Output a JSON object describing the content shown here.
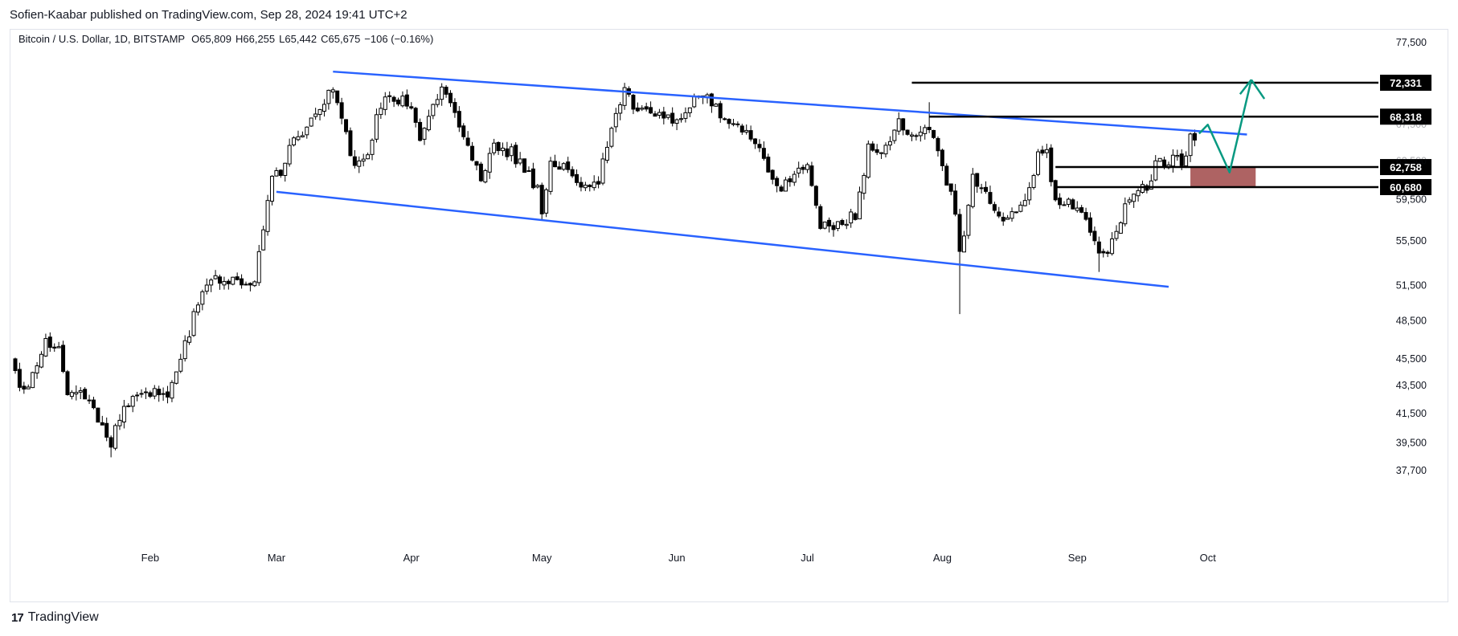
{
  "header": {
    "published": "Sofien-Kaabar published on TradingView.com, Sep 28, 2024 19:41 UTC+2"
  },
  "footer": {
    "brand": "TradingView",
    "brand_mark": "17"
  },
  "colors": {
    "up": "#ffffff",
    "down": "#000000",
    "wick": "#000000",
    "channel": "#2962ff",
    "level": "#000000",
    "arrow": "#089981",
    "zone": "#a04848",
    "grid": "#ffffff",
    "axis_text": "#131722"
  },
  "chart_data": {
    "type": "candlestick",
    "title": "Bitcoin / U.S. Dollar, 1D, BITSTAMP",
    "ohlc_readout": {
      "open_label": "O",
      "open": "65,809",
      "high_label": "H",
      "high": "66,255",
      "low_label": "L",
      "low": "65,442",
      "close_label": "C",
      "close": "65,675",
      "change": "−106 (−0.16%)"
    },
    "x_range": [
      "2024-01-01",
      "2024-10-19"
    ],
    "y_ticks": [
      {
        "label": "77,500",
        "value": 77500
      },
      {
        "label": "67,500",
        "value": 67500
      },
      {
        "label": "63,500",
        "value": 63500
      },
      {
        "label": "59,500",
        "value": 59500
      },
      {
        "label": "55,500",
        "value": 55500
      },
      {
        "label": "51,500",
        "value": 51500
      },
      {
        "label": "48,500",
        "value": 48500
      },
      {
        "label": "45,500",
        "value": 45500
      },
      {
        "label": "43,500",
        "value": 43500
      },
      {
        "label": "41,500",
        "value": 41500
      },
      {
        "label": "39,500",
        "value": 39500
      },
      {
        "label": "37,700",
        "value": 37700
      }
    ],
    "x_ticks": [
      {
        "label": "Feb",
        "date": "2024-02-01"
      },
      {
        "label": "Mar",
        "date": "2024-03-01"
      },
      {
        "label": "Apr",
        "date": "2024-04-01"
      },
      {
        "label": "May",
        "date": "2024-05-01"
      },
      {
        "label": "Jun",
        "date": "2024-06-01"
      },
      {
        "label": "Jul",
        "date": "2024-07-01"
      },
      {
        "label": "Aug",
        "date": "2024-08-01"
      },
      {
        "label": "Sep",
        "date": "2024-09-01"
      },
      {
        "label": "Oct",
        "date": "2024-10-01"
      }
    ],
    "price_anchors": [
      [
        "2024-01-01",
        44200
      ],
      [
        "2024-01-03",
        42800
      ],
      [
        "2024-01-08",
        46800
      ],
      [
        "2024-01-11",
        46300
      ],
      [
        "2024-01-13",
        42800
      ],
      [
        "2024-01-16",
        43100
      ],
      [
        "2024-01-19",
        41600
      ],
      [
        "2024-01-23",
        39500
      ],
      [
        "2024-01-26",
        41800
      ],
      [
        "2024-01-30",
        43300
      ],
      [
        "2024-02-05",
        42600
      ],
      [
        "2024-02-08",
        45300
      ],
      [
        "2024-02-12",
        49900
      ],
      [
        "2024-02-15",
        52000
      ],
      [
        "2024-02-20",
        51800
      ],
      [
        "2024-02-25",
        51700
      ],
      [
        "2024-02-27",
        57000
      ],
      [
        "2024-02-29",
        61200
      ],
      [
        "2024-03-03",
        63100
      ],
      [
        "2024-03-05",
        66500
      ],
      [
        "2024-03-06",
        66000
      ],
      [
        "2024-03-10",
        69000
      ],
      [
        "2024-03-14",
        71500
      ],
      [
        "2024-03-16",
        68500
      ],
      [
        "2024-03-19",
        62500
      ],
      [
        "2024-03-22",
        64000
      ],
      [
        "2024-03-25",
        69900
      ],
      [
        "2024-03-28",
        70800
      ],
      [
        "2024-04-01",
        69500
      ],
      [
        "2024-04-03",
        66000
      ],
      [
        "2024-04-08",
        71700
      ],
      [
        "2024-04-12",
        67200
      ],
      [
        "2024-04-14",
        64800
      ],
      [
        "2024-04-17",
        61500
      ],
      [
        "2024-04-20",
        64900
      ],
      [
        "2024-04-24",
        64300
      ],
      [
        "2024-04-30",
        60600
      ],
      [
        "2024-05-01",
        58300
      ],
      [
        "2024-05-03",
        62900
      ],
      [
        "2024-05-07",
        62700
      ],
      [
        "2024-05-10",
        60800
      ],
      [
        "2024-05-14",
        61500
      ],
      [
        "2024-05-16",
        65200
      ],
      [
        "2024-05-20",
        71400
      ],
      [
        "2024-05-22",
        69500
      ],
      [
        "2024-05-26",
        69300
      ],
      [
        "2024-05-31",
        67500
      ],
      [
        "2024-06-03",
        69000
      ],
      [
        "2024-06-06",
        71100
      ],
      [
        "2024-06-10",
        69600
      ],
      [
        "2024-06-12",
        68000
      ],
      [
        "2024-06-17",
        66500
      ],
      [
        "2024-06-20",
        65000
      ],
      [
        "2024-06-24",
        60300
      ],
      [
        "2024-06-27",
        61600
      ],
      [
        "2024-07-01",
        62500
      ],
      [
        "2024-07-04",
        57000
      ],
      [
        "2024-07-06",
        56700
      ],
      [
        "2024-07-08",
        57200
      ],
      [
        "2024-07-12",
        57900
      ],
      [
        "2024-07-15",
        64700
      ],
      [
        "2024-07-18",
        63900
      ],
      [
        "2024-07-22",
        67600
      ],
      [
        "2024-07-25",
        65700
      ],
      [
        "2024-07-29",
        66700
      ],
      [
        "2024-07-31",
        64600
      ],
      [
        "2024-08-02",
        61400
      ],
      [
        "2024-08-04",
        58100
      ],
      [
        "2024-08-05",
        54000
      ],
      [
        "2024-08-06",
        56000
      ],
      [
        "2024-08-08",
        61700
      ],
      [
        "2024-08-12",
        59300
      ],
      [
        "2024-08-15",
        57500
      ],
      [
        "2024-08-20",
        59200
      ],
      [
        "2024-08-23",
        64000
      ],
      [
        "2024-08-25",
        64200
      ],
      [
        "2024-08-27",
        59300
      ],
      [
        "2024-08-30",
        59000
      ],
      [
        "2024-09-03",
        57300
      ],
      [
        "2024-09-06",
        53900
      ],
      [
        "2024-09-08",
        54800
      ],
      [
        "2024-09-11",
        57600
      ],
      [
        "2024-09-14",
        60500
      ],
      [
        "2024-09-17",
        60300
      ],
      [
        "2024-09-19",
        62900
      ],
      [
        "2024-09-22",
        63600
      ],
      [
        "2024-09-25",
        63300
      ],
      [
        "2024-09-27",
        65800
      ],
      [
        "2024-09-28",
        65675
      ]
    ],
    "wick_highlights": [
      {
        "date": "2024-08-05",
        "low": 49000
      },
      {
        "date": "2024-07-29",
        "high": 70000
      },
      {
        "date": "2024-01-23",
        "low": 38500
      },
      {
        "date": "2024-09-06",
        "low": 52600
      }
    ],
    "channel_upper": [
      [
        "2024-03-14",
        73700
      ],
      [
        "2024-10-10",
        66300
      ]
    ],
    "channel_lower": [
      [
        "2024-03-01",
        60200
      ],
      [
        "2024-09-22",
        51300
      ]
    ],
    "levels": [
      {
        "label": "72,331",
        "value": 72331,
        "from": "2024-07-25"
      },
      {
        "label": "68,318",
        "value": 68318,
        "from": "2024-07-29"
      },
      {
        "label": "62,758",
        "value": 62758,
        "from": "2024-08-27"
      },
      {
        "label": "60,680",
        "value": 60680,
        "from": "2024-08-27"
      }
    ],
    "demand_zone": {
      "from": "2024-09-27",
      "to": "2024-10-12",
      "top": 62758,
      "bottom": 60680
    },
    "projection_path": [
      [
        "2024-09-29",
        66400
      ],
      [
        "2024-10-01",
        67400
      ],
      [
        "2024-10-06",
        62200
      ],
      [
        "2024-10-11",
        72700
      ],
      [
        "2024-10-14",
        70400
      ]
    ],
    "grid": false,
    "legend": "top-left"
  }
}
